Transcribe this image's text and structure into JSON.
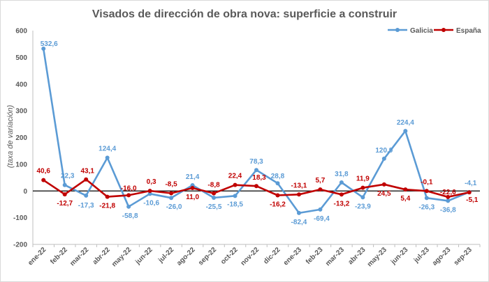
{
  "chart_data": {
    "type": "line",
    "title": "Visados de dirección de obra nova: superficie a construir",
    "xlabel": "",
    "ylabel": "(taxa de variación)",
    "ylim": [
      -200,
      600
    ],
    "yticks": [
      -200,
      -100,
      0,
      100,
      200,
      300,
      400,
      500,
      600
    ],
    "ytick_labels": [
      "-200",
      "-100",
      "0",
      "100",
      "200",
      "300",
      "400",
      "500",
      "600"
    ],
    "grid": false,
    "legend_position": "top-right",
    "categories": [
      "ene-22",
      "feb-22",
      "mar-22",
      "abr-22",
      "may-22",
      "jun-22",
      "jul-22",
      "ago-22",
      "sep-22",
      "oct-22",
      "nov-22",
      "dic-22",
      "ene-23",
      "feb-23",
      "mar-23",
      "abr-23",
      "may-23",
      "jun-23",
      "jul-23",
      "ago-23",
      "sep-23"
    ],
    "series": [
      {
        "name": "Galicia",
        "color": "#5B9BD5",
        "values": [
          532.6,
          22.3,
          -17.3,
          124.4,
          -58.8,
          -10.6,
          -26.0,
          21.4,
          -25.5,
          -18.5,
          78.3,
          28.8,
          -82.4,
          -69.4,
          31.8,
          -23.9,
          120.9,
          224.4,
          -26.3,
          -36.8,
          -4.1
        ],
        "labels": [
          "532,6",
          "22,3",
          "-17,3",
          "124,4",
          "-58,8",
          "-10,6",
          "-26,0",
          "21,4",
          "-25,5",
          "-18,5",
          "78,3",
          "28,8",
          "-82,4",
          "-69,4",
          "31,8",
          "-23,9",
          "120,9",
          "224,4",
          "-26,3",
          "-36,8",
          "-4,1"
        ]
      },
      {
        "name": "España",
        "color": "#C00000",
        "values": [
          40.6,
          -12.7,
          43.1,
          -21.8,
          -16.0,
          0.3,
          -8.5,
          11.0,
          -8.8,
          22.4,
          18.3,
          -16.2,
          -13.1,
          5.7,
          -13.2,
          11.9,
          24.5,
          5.4,
          -0.1,
          -22.6,
          -5.1
        ],
        "labels": [
          "40,6",
          "-12,7",
          "43,1",
          "-21,8",
          "-16,0",
          "0,3",
          "-8,5",
          "11,0",
          "-8,8",
          "22,4",
          "18,3",
          "-16,2",
          "-13,1",
          "5,7",
          "-13,2",
          "11,9",
          "24,5",
          "5,4",
          "-0,1",
          "-22,6",
          "-5,1"
        ]
      }
    ]
  }
}
